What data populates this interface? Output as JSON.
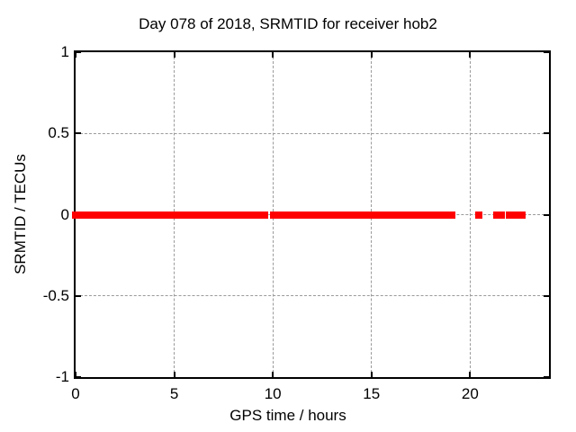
{
  "chart_data": {
    "type": "scatter",
    "title": "Day 078 of 2018, SRMTID for receiver hob2",
    "xlabel": "GPS time / hours",
    "ylabel": "SRMTID / TECUs",
    "xlim": [
      0,
      24
    ],
    "ylim": [
      -1,
      1
    ],
    "xticks": [
      {
        "value": 0,
        "label": "0"
      },
      {
        "value": 5,
        "label": "5"
      },
      {
        "value": 10,
        "label": "10"
      },
      {
        "value": 15,
        "label": "15"
      },
      {
        "value": 20,
        "label": "20"
      }
    ],
    "yticks": [
      {
        "value": 1,
        "label": "1"
      },
      {
        "value": 0.5,
        "label": "0.5"
      },
      {
        "value": 0,
        "label": "0"
      },
      {
        "value": -0.5,
        "label": "-0.5"
      },
      {
        "value": -1,
        "label": "-1"
      }
    ],
    "grid": true,
    "grid_style": "dashed",
    "legend_position": "none",
    "series": [
      {
        "name": "SRMTID",
        "color": "#ff0000",
        "marker": "square",
        "marker_size_px": 8,
        "y_value": 0,
        "x_segments_hours": [
          [
            0,
            9.56
          ],
          [
            10.04,
            19.07
          ],
          [
            20.42,
            20.42
          ],
          [
            21.35,
            21.56
          ],
          [
            21.99,
            22.65
          ]
        ]
      }
    ]
  },
  "colors": {
    "data": "#ff0000",
    "grid": "#9a9a9a",
    "axis": "#000000",
    "text": "#000000",
    "background": "#ffffff"
  }
}
